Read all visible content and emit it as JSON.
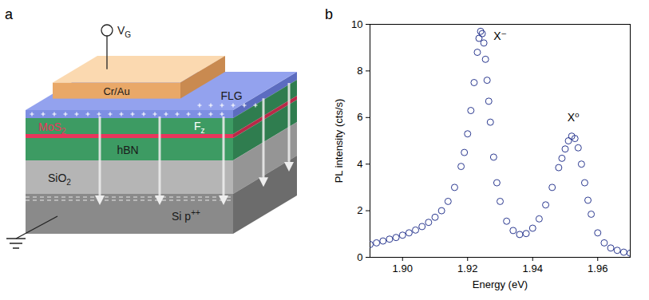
{
  "diagram": {
    "panel": "a",
    "labels": {
      "gate": {
        "text": "V",
        "sub": "G"
      },
      "contact": {
        "text": "Cr/Au"
      },
      "flg": {
        "text": "FLG"
      },
      "mos2": {
        "text": "MoS",
        "sub": "2"
      },
      "field": {
        "text": "F",
        "sub": "z"
      },
      "hbn": {
        "text": "hBN"
      },
      "sio2": {
        "text": "SiO",
        "sub": "2"
      },
      "si": {
        "text": "Si p",
        "sup": "++"
      }
    }
  },
  "chart_data": {
    "panel": "b",
    "type": "scatter",
    "marker": "circle",
    "color": "#2b3990",
    "x_label": "Energy (eV)",
    "y_label": "PL intensity (cts/s)",
    "xlim": [
      1.89,
      1.97
    ],
    "xticks": [
      {
        "value": 1.9,
        "label": "1.90"
      },
      {
        "value": 1.92,
        "label": "1.92"
      },
      {
        "value": 1.94,
        "label": "1.94"
      },
      {
        "value": 1.96,
        "label": "1.96"
      }
    ],
    "ylim": [
      0,
      10
    ],
    "yticks": [
      0,
      2,
      4,
      6,
      8,
      10
    ],
    "x": [
      1.89,
      1.892,
      1.894,
      1.896,
      1.898,
      1.9,
      1.902,
      1.904,
      1.906,
      1.908,
      1.91,
      1.912,
      1.914,
      1.916,
      1.918,
      1.919,
      1.92,
      1.921,
      1.922,
      1.923,
      1.9235,
      1.924,
      1.9245,
      1.925,
      1.9255,
      1.926,
      1.9265,
      1.927,
      1.928,
      1.929,
      1.93,
      1.932,
      1.934,
      1.936,
      1.938,
      1.94,
      1.942,
      1.944,
      1.946,
      1.948,
      1.949,
      1.95,
      1.951,
      1.952,
      1.953,
      1.954,
      1.955,
      1.956,
      1.957,
      1.958,
      1.96,
      1.962,
      1.964,
      1.966,
      1.968,
      1.97
    ],
    "values": [
      0.55,
      0.62,
      0.7,
      0.78,
      0.85,
      0.95,
      1.05,
      1.17,
      1.32,
      1.5,
      1.72,
      2.0,
      2.4,
      3.0,
      3.9,
      4.5,
      5.3,
      6.3,
      7.5,
      8.8,
      9.4,
      9.7,
      9.6,
      9.2,
      8.5,
      7.6,
      6.7,
      5.8,
      4.3,
      3.2,
      2.4,
      1.55,
      1.15,
      0.98,
      1.02,
      1.25,
      1.65,
      2.25,
      3.0,
      3.85,
      4.25,
      4.65,
      5.0,
      5.2,
      5.1,
      4.7,
      4.0,
      3.2,
      2.45,
      1.85,
      1.05,
      0.62,
      0.4,
      0.3,
      0.22,
      0.18
    ],
    "annotations": [
      {
        "text": "X⁻",
        "x": 1.927,
        "y": 9.5
      },
      {
        "text": "X⁰",
        "x": 1.9525,
        "y": 6.0
      }
    ]
  }
}
